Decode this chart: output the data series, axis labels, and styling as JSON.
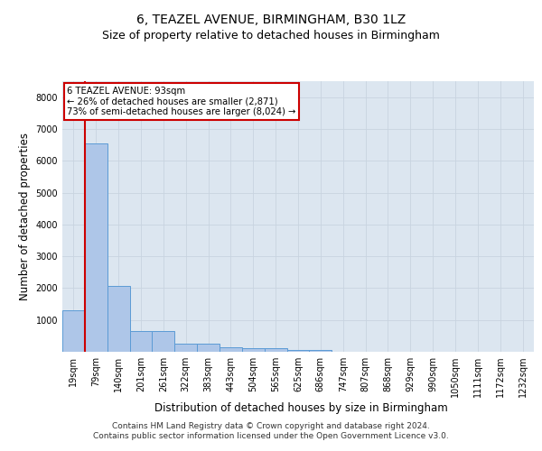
{
  "title": "6, TEAZEL AVENUE, BIRMINGHAM, B30 1LZ",
  "subtitle": "Size of property relative to detached houses in Birmingham",
  "xlabel": "Distribution of detached houses by size in Birmingham",
  "ylabel": "Number of detached properties",
  "footer_line1": "Contains HM Land Registry data © Crown copyright and database right 2024.",
  "footer_line2": "Contains public sector information licensed under the Open Government Licence v3.0.",
  "categories": [
    "19sqm",
    "79sqm",
    "140sqm",
    "201sqm",
    "261sqm",
    "322sqm",
    "383sqm",
    "443sqm",
    "504sqm",
    "565sqm",
    "625sqm",
    "686sqm",
    "747sqm",
    "807sqm",
    "868sqm",
    "929sqm",
    "990sqm",
    "1050sqm",
    "1111sqm",
    "1172sqm",
    "1232sqm"
  ],
  "values": [
    1300,
    6550,
    2080,
    650,
    645,
    260,
    255,
    130,
    125,
    125,
    70,
    65,
    0,
    0,
    0,
    0,
    0,
    0,
    0,
    0,
    0
  ],
  "bar_color": "#aec6e8",
  "bar_edge_color": "#5b9bd5",
  "property_label": "6 TEAZEL AVENUE: 93sqm",
  "annotation_line1": "← 26% of detached houses are smaller (2,871)",
  "annotation_line2": "73% of semi-detached houses are larger (8,024) →",
  "annotation_box_color": "#ffffff",
  "annotation_border_color": "#cc0000",
  "red_line_x": 0.5,
  "ylim": [
    0,
    8500
  ],
  "yticks": [
    0,
    1000,
    2000,
    3000,
    4000,
    5000,
    6000,
    7000,
    8000
  ],
  "grid_color": "#c8d4e0",
  "plot_bg_color": "#dce6f0",
  "title_fontsize": 10,
  "subtitle_fontsize": 9,
  "tick_fontsize": 7,
  "ylabel_fontsize": 8.5,
  "xlabel_fontsize": 8.5,
  "footer_fontsize": 6.5
}
